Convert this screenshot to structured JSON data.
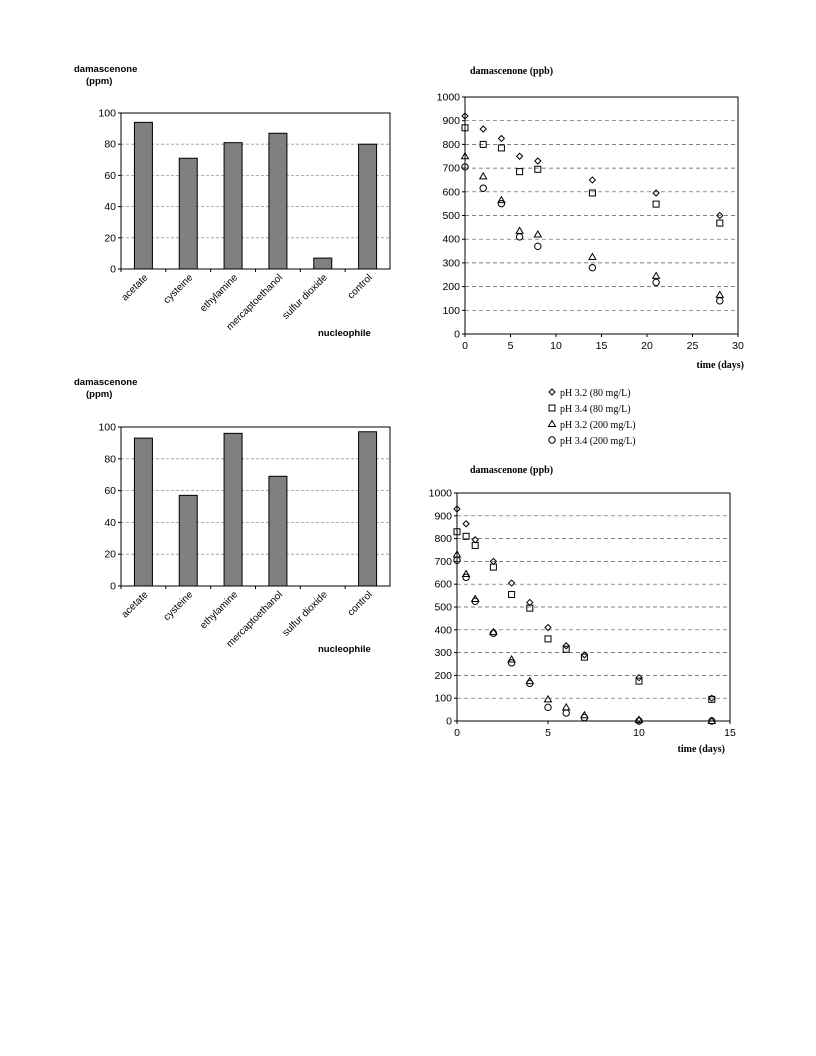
{
  "chart_data": [
    {
      "type": "bar",
      "ylabel_line1": "damascenone",
      "ylabel_line2": "(ppm)",
      "xlabel": "nucleophile",
      "categories": [
        "acetate",
        "cysteine",
        "ethylamine",
        "mercaptoethanol",
        "sulfur dioxide",
        "control"
      ],
      "values": [
        94,
        71,
        81,
        87,
        7,
        80
      ],
      "ylim": [
        0,
        100
      ],
      "yticks": [
        0,
        20,
        40,
        60,
        80,
        100
      ],
      "grid": "horizontal-dashed",
      "bar_color": "#808080"
    },
    {
      "type": "scatter",
      "ylabel": "damascenone (ppb)",
      "xlabel": "time (days)",
      "xlim": [
        0,
        30
      ],
      "xticks": [
        0,
        5,
        10,
        15,
        20,
        25,
        30
      ],
      "ylim": [
        0,
        1000
      ],
      "yticks": [
        0,
        100,
        200,
        300,
        400,
        500,
        600,
        700,
        800,
        900,
        1000
      ],
      "grid": "horizontal-dashed",
      "series": [
        {
          "marker": "diamond",
          "x": [
            0,
            2,
            4,
            6,
            8,
            14,
            21,
            28
          ],
          "y": [
            920,
            865,
            825,
            750,
            730,
            650,
            595,
            500
          ]
        },
        {
          "marker": "square",
          "x": [
            0,
            2,
            4,
            6,
            8,
            14,
            21,
            28
          ],
          "y": [
            870,
            800,
            785,
            685,
            695,
            595,
            548,
            468
          ]
        },
        {
          "marker": "triangle",
          "x": [
            0,
            2,
            4,
            6,
            8,
            14,
            21,
            28
          ],
          "y": [
            750,
            665,
            565,
            435,
            420,
            325,
            245,
            165
          ]
        },
        {
          "marker": "circle",
          "x": [
            0,
            2,
            4,
            6,
            8,
            14,
            21,
            28
          ],
          "y": [
            705,
            615,
            550,
            410,
            370,
            280,
            218,
            140
          ]
        }
      ]
    },
    {
      "type": "bar",
      "ylabel_line1": "damascenone",
      "ylabel_line2": "(ppm)",
      "xlabel": "nucleophile",
      "categories": [
        "acetate",
        "cysteine",
        "ethylamine",
        "mercaptoethanol",
        "sulfur dioxide",
        "control"
      ],
      "values": [
        93,
        57,
        96,
        69,
        0,
        97
      ],
      "ylim": [
        0,
        100
      ],
      "yticks": [
        0,
        20,
        40,
        60,
        80,
        100
      ],
      "grid": "horizontal-dashed",
      "bar_color": "#808080"
    },
    {
      "type": "scatter",
      "ylabel": "damascenone (ppb)",
      "xlabel": "time (days)",
      "xlim": [
        0,
        15
      ],
      "xticks": [
        0,
        5,
        10,
        15
      ],
      "ylim": [
        0,
        1000
      ],
      "yticks": [
        0,
        100,
        200,
        300,
        400,
        500,
        600,
        700,
        800,
        900,
        1000
      ],
      "grid": "horizontal-dashed",
      "legend": {
        "placement": "top",
        "entries": [
          {
            "marker": "diamond",
            "label": "pH 3.2 (80 mg/L)"
          },
          {
            "marker": "square",
            "label": "pH 3.4 (80 mg/L)"
          },
          {
            "marker": "triangle",
            "label": "pH 3.2 (200 mg/L)"
          },
          {
            "marker": "circle",
            "label": "pH 3.4 (200 mg/L)"
          }
        ]
      },
      "series": [
        {
          "name": "pH 3.2 (80 mg/L)",
          "marker": "diamond",
          "x": [
            0,
            0.5,
            1,
            2,
            3,
            4,
            5,
            6,
            7,
            10,
            14
          ],
          "y": [
            930,
            865,
            795,
            700,
            605,
            520,
            410,
            330,
            290,
            190,
            100
          ]
        },
        {
          "name": "pH 3.4 (80 mg/L)",
          "marker": "square",
          "x": [
            0,
            0.5,
            1,
            2,
            3,
            4,
            5,
            6,
            7,
            10,
            14
          ],
          "y": [
            830,
            810,
            770,
            675,
            555,
            495,
            360,
            315,
            280,
            175,
            95
          ]
        },
        {
          "name": "pH 3.2 (200 mg/L)",
          "marker": "triangle",
          "x": [
            0,
            0.5,
            1,
            2,
            3,
            4,
            5,
            6,
            7,
            10,
            14
          ],
          "y": [
            730,
            645,
            535,
            390,
            270,
            175,
            95,
            60,
            25,
            5,
            0
          ]
        },
        {
          "name": "pH 3.4 (200 mg/L)",
          "marker": "circle",
          "x": [
            0,
            0.5,
            1,
            2,
            3,
            4,
            5,
            6,
            7,
            10,
            14
          ],
          "y": [
            705,
            630,
            525,
            385,
            255,
            165,
            60,
            35,
            15,
            0,
            0
          ]
        }
      ]
    }
  ]
}
